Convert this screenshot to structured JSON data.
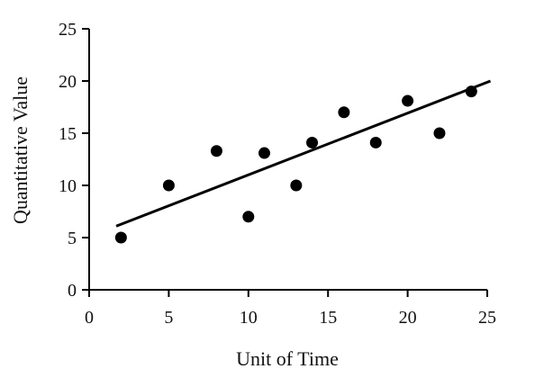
{
  "chart_data": {
    "type": "scatter",
    "title": "",
    "xlabel": "Unit of Time",
    "ylabel": "Quantitative Value",
    "xlim": [
      0,
      25
    ],
    "ylim": [
      0,
      25
    ],
    "xticks": [
      "0",
      "5",
      "10",
      "15",
      "20",
      "25"
    ],
    "yticks": [
      "0",
      "5",
      "10",
      "15",
      "20",
      "25"
    ],
    "grid": false,
    "legend": "none",
    "series": [
      {
        "points": [
          {
            "x": 2,
            "y": 5
          },
          {
            "x": 5,
            "y": 10
          },
          {
            "x": 8,
            "y": 13.3
          },
          {
            "x": 10,
            "y": 7
          },
          {
            "x": 11,
            "y": 13.1
          },
          {
            "x": 13,
            "y": 10
          },
          {
            "x": 14,
            "y": 14.1
          },
          {
            "x": 16,
            "y": 17
          },
          {
            "x": 18,
            "y": 14.1
          },
          {
            "x": 20,
            "y": 18.1
          },
          {
            "x": 22,
            "y": 15
          },
          {
            "x": 24,
            "y": 19
          }
        ]
      }
    ],
    "trendline": {
      "x": [
        1.7,
        25.2
      ],
      "y": [
        6.1,
        20
      ]
    },
    "colors": {
      "axis": "#000000",
      "marker": "#000000",
      "line": "#000000"
    }
  }
}
